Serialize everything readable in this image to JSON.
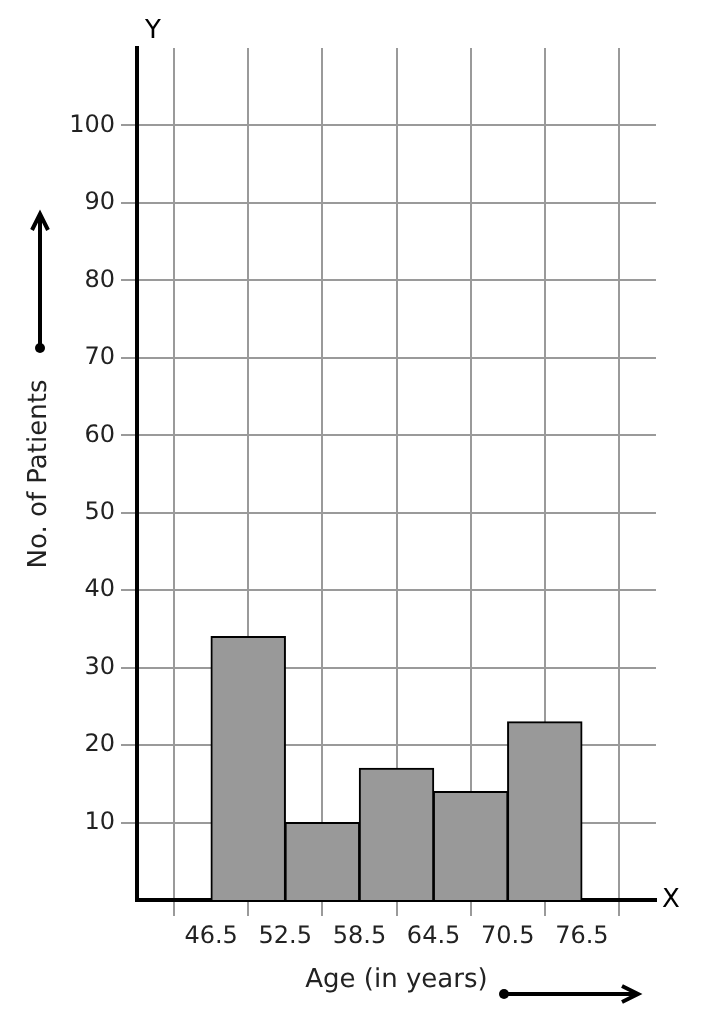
{
  "chart_data": {
    "type": "histogram",
    "xlabel": "Age (in years)",
    "ylabel": "No. of Patients",
    "bins": [
      46.5,
      52.5,
      58.5,
      64.5,
      70.5,
      76.5
    ],
    "values": [
      34,
      10,
      17,
      14,
      23
    ],
    "color": "#999999",
    "xlim": [
      40.5,
      82.5
    ],
    "xticks": [
      46.5,
      52.5,
      58.5,
      64.5,
      70.5,
      76.5
    ],
    "ylim": [
      0,
      110
    ],
    "yticks": [
      10,
      20,
      30,
      40,
      50,
      60,
      70,
      80,
      90,
      100
    ],
    "grid": true,
    "annotations": [
      "X",
      "Y"
    ]
  }
}
